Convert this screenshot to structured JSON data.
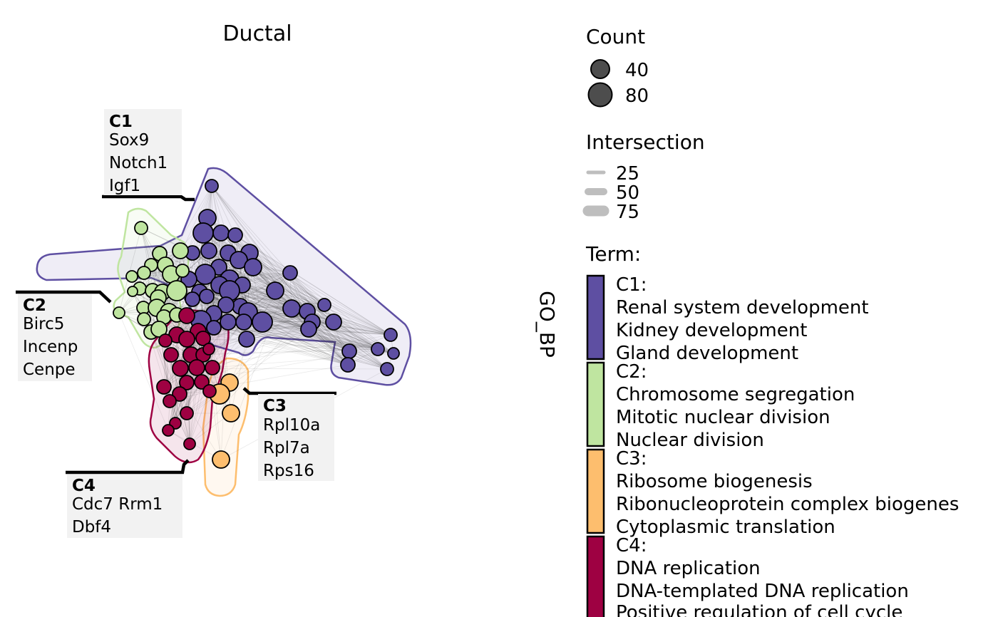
{
  "title": "Ductal",
  "y_axis_label": "GO_BP",
  "colors": {
    "C1": "#5E4FA2",
    "C2": "#BFE5A0",
    "C3": "#FDBE6E",
    "C4": "#9E0142",
    "edge": "#333333",
    "label_box": "#F2F2F2",
    "legend_line": "#BEBEBE",
    "legend_point": "#4D4D4D"
  },
  "clusters": [
    {
      "id": "C1",
      "label": "C1",
      "genes": [
        "Sox9",
        "Notch1",
        "Igf1"
      ]
    },
    {
      "id": "C2",
      "label": "C2",
      "genes": [
        "Birc5",
        "Incenp",
        "Cenpe"
      ]
    },
    {
      "id": "C3",
      "label": "C3",
      "genes": [
        "Rpl10a",
        "Rpl7a",
        "Rps16"
      ]
    },
    {
      "id": "C4",
      "label": "C4",
      "genes": [
        "Cdc7 Rrm1",
        "Dbf4"
      ]
    }
  ],
  "legend": {
    "count": {
      "title": "Count",
      "values": [
        "40",
        "80"
      ]
    },
    "intersection": {
      "title": "Intersection",
      "values": [
        "25",
        "50",
        "75"
      ]
    },
    "term": {
      "title": "Term:",
      "groups": [
        {
          "id": "C1",
          "lines": [
            "C1:",
            "Renal system development",
            "Kidney development",
            "Gland development"
          ]
        },
        {
          "id": "C2",
          "lines": [
            "C2:",
            "Chromosome segregation",
            "Mitotic nuclear division",
            "Nuclear division"
          ]
        },
        {
          "id": "C3",
          "lines": [
            "C3:",
            "Ribosome biogenesis",
            "Ribonucleoprotein complex biogenes",
            "Cytoplasmic translation"
          ]
        },
        {
          "id": "C4",
          "lines": [
            "C4:",
            "DNA replication",
            "DNA-templated DNA replication",
            "Positive regulation of cell cycle"
          ]
        }
      ]
    }
  }
}
